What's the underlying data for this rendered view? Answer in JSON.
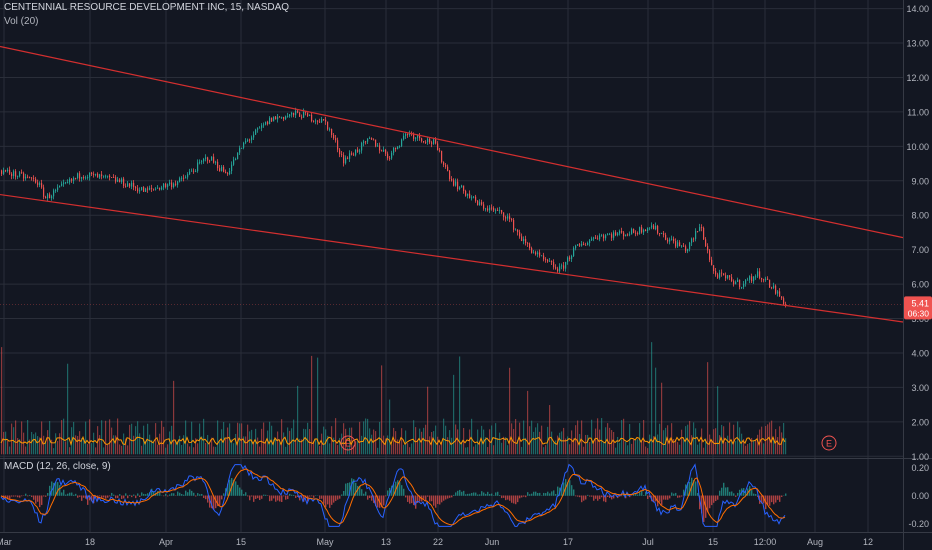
{
  "header": {
    "symbol_line": "CENTENNIAL RESOURCE DEVELOPMENT INC, 15, NASDAQ",
    "volume_label": "Vol (20)",
    "macd_label": "MACD (12, 26, close, 9)"
  },
  "price_badge": {
    "price": "5.41",
    "countdown": "06:30"
  },
  "earnings_markers": [
    "E",
    "E"
  ],
  "colors": {
    "background": "#131722",
    "grid": "#2a2e39",
    "up": "#26a69a",
    "down": "#ef5350",
    "trendline": "#d32f2f",
    "volume_ma": "#ff9800",
    "macd_line": "#2962ff",
    "signal_line": "#ff6d00",
    "badge": "#ef5350"
  },
  "chart_data": [
    {
      "type": "candlestick",
      "title": "CENTENNIAL RESOURCE DEVELOPMENT INC, 15, NASDAQ",
      "x_tick_labels": [
        "Mar",
        "18",
        "Apr",
        "15",
        "May",
        "13",
        "22",
        "Jun",
        "17",
        "Jul",
        "15",
        "12:00",
        "Aug",
        "12"
      ],
      "y_ticks": [
        "14.00",
        "13.00",
        "12.00",
        "11.00",
        "10.00",
        "9.00",
        "8.00",
        "7.00",
        "6.00",
        "5.00",
        "4.00",
        "3.00",
        "2.00",
        "1.00"
      ],
      "ylim": [
        0.95,
        14.25
      ],
      "price_path": [
        {
          "t": 0,
          "p": 9.3
        },
        {
          "t": 0.04,
          "p": 9.0
        },
        {
          "t": 0.05,
          "p": 8.5
        },
        {
          "t": 0.09,
          "p": 9.2
        },
        {
          "t": 0.13,
          "p": 9.0
        },
        {
          "t": 0.16,
          "p": 8.7
        },
        {
          "t": 0.2,
          "p": 9.0
        },
        {
          "t": 0.23,
          "p": 9.7
        },
        {
          "t": 0.25,
          "p": 9.2
        },
        {
          "t": 0.27,
          "p": 10.1
        },
        {
          "t": 0.3,
          "p": 10.8
        },
        {
          "t": 0.33,
          "p": 10.95
        },
        {
          "t": 0.36,
          "p": 10.7
        },
        {
          "t": 0.38,
          "p": 9.6
        },
        {
          "t": 0.41,
          "p": 10.2
        },
        {
          "t": 0.43,
          "p": 9.7
        },
        {
          "t": 0.45,
          "p": 10.4
        },
        {
          "t": 0.48,
          "p": 10.1
        },
        {
          "t": 0.5,
          "p": 9.0
        },
        {
          "t": 0.53,
          "p": 8.3
        },
        {
          "t": 0.56,
          "p": 8.0
        },
        {
          "t": 0.58,
          "p": 7.2
        },
        {
          "t": 0.6,
          "p": 6.7
        },
        {
          "t": 0.62,
          "p": 6.4
        },
        {
          "t": 0.635,
          "p": 7.0
        },
        {
          "t": 0.66,
          "p": 7.4
        },
        {
          "t": 0.7,
          "p": 7.5
        },
        {
          "t": 0.72,
          "p": 7.7
        },
        {
          "t": 0.74,
          "p": 7.3
        },
        {
          "t": 0.76,
          "p": 7.0
        },
        {
          "t": 0.775,
          "p": 7.7
        },
        {
          "t": 0.79,
          "p": 6.3
        },
        {
          "t": 0.82,
          "p": 6.0
        },
        {
          "t": 0.84,
          "p": 6.3
        },
        {
          "t": 0.855,
          "p": 5.9
        },
        {
          "t": 0.87,
          "p": 5.41
        }
      ],
      "last_price": 5.41,
      "trendlines": [
        {
          "name": "upper",
          "points": [
            {
              "t": 0,
              "p": 12.9
            },
            {
              "t": 1,
              "p": 7.35
            }
          ]
        },
        {
          "name": "lower",
          "points": [
            {
              "t": 0,
              "p": 8.6
            },
            {
              "t": 1,
              "p": 4.9
            }
          ]
        }
      ],
      "volume_range": [
        1.0,
        4.6
      ]
    },
    {
      "type": "line",
      "title": "MACD (12, 26, close, 9)",
      "y_ticks": [
        "0.20",
        "0.00",
        "-0.20"
      ],
      "ylim": [
        -0.26,
        0.26
      ],
      "series": [
        {
          "name": "MACD",
          "color": "#2962ff"
        },
        {
          "name": "Signal",
          "color": "#ff6d00"
        }
      ]
    }
  ]
}
